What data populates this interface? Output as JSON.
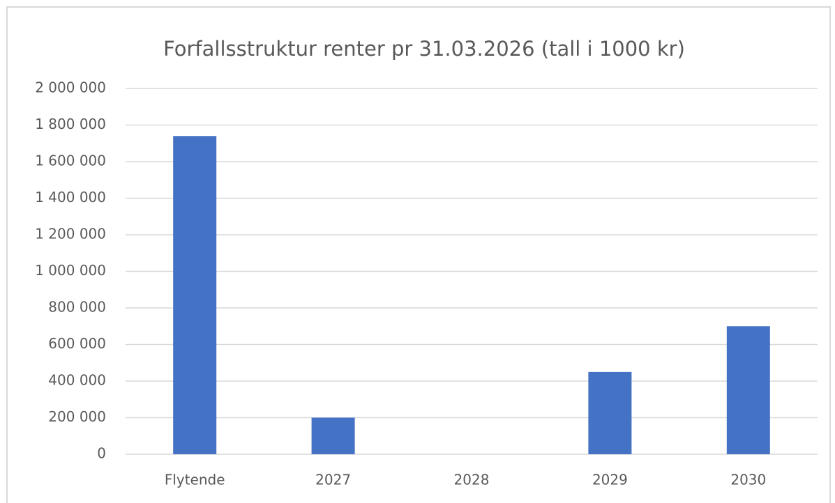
{
  "chart_data": {
    "type": "bar",
    "title": "Forfallsstruktur renter pr 31.03.2026 (tall i 1000 kr)",
    "categories": [
      "Flytende",
      "2027",
      "2028",
      "2029",
      "2030"
    ],
    "values": [
      1740000,
      200000,
      0,
      450000,
      700000
    ],
    "color": "#4472c4",
    "ylim": [
      0,
      2000000
    ],
    "yticks": [
      0,
      {
        "value": 200000,
        "label": "200 000"
      },
      {
        "value": 400000,
        "label": "400 000"
      },
      {
        "value": 600000,
        "label": "600 000"
      },
      {
        "value": 800000,
        "label": "800 000"
      },
      {
        "value": 1000000,
        "label": "1 000 000"
      },
      {
        "value": 1200000,
        "label": "1 200 000"
      },
      {
        "value": 1400000,
        "label": "1 400 000"
      },
      {
        "value": 1600000,
        "label": "1 600 000"
      },
      {
        "value": 1800000,
        "label": "1 800 000"
      },
      {
        "value": 2000000,
        "label": "2 000 000"
      }
    ],
    "grid": true
  }
}
